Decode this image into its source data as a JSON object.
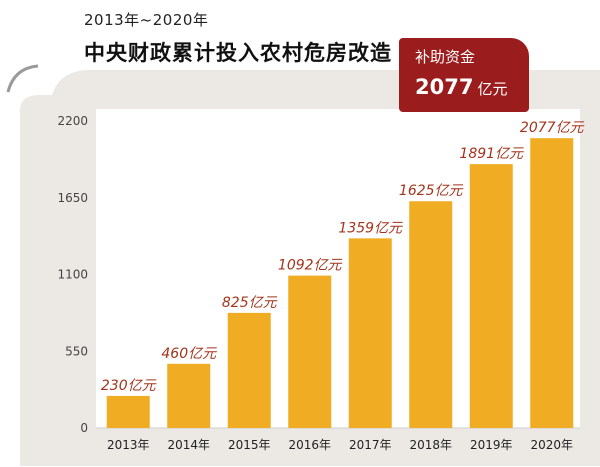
{
  "header": {
    "subtitle": "2013年~2020年",
    "title": "中央财政累计投入农村危房改造"
  },
  "badge": {
    "label": "补助资金",
    "value": "2077",
    "unit": "亿元"
  },
  "colors": {
    "bar": "#f0ac22",
    "value_label": "#a3341c",
    "badge_bg": "#9b1c1c",
    "panel_bg": "#ece9e4"
  },
  "chart_data": {
    "type": "bar",
    "title": "中央财政累计投入农村危房改造",
    "categories": [
      "2013年",
      "2014年",
      "2015年",
      "2016年",
      "2017年",
      "2018年",
      "2019年",
      "2020年"
    ],
    "values": [
      230,
      460,
      825,
      1092,
      1359,
      1625,
      1891,
      2077
    ],
    "data_labels": [
      "230亿元",
      "460亿元",
      "825亿元",
      "1092亿元",
      "1359亿元",
      "1625亿元",
      "1891亿元",
      "2077亿元"
    ],
    "yticks": [
      "0",
      "550",
      "1100",
      "1650",
      "2200"
    ],
    "ylim": [
      0,
      2200
    ],
    "grid": false,
    "legend": "none"
  }
}
